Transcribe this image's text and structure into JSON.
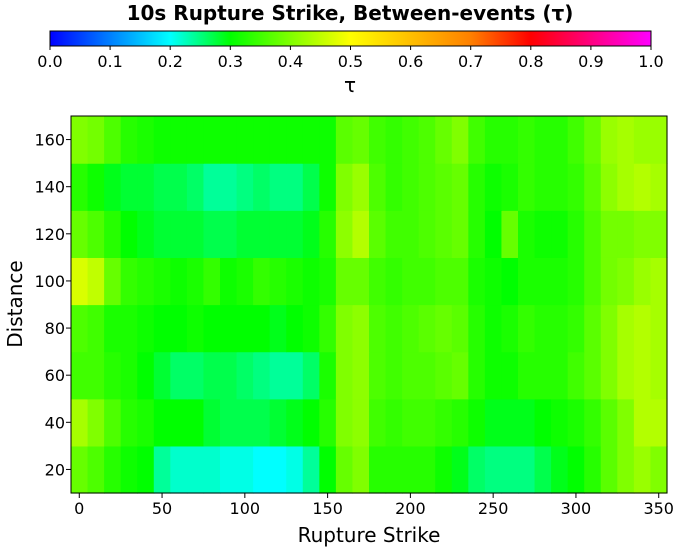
{
  "chart_data": {
    "type": "heatmap",
    "title": "10s Rupture Strike, Between-events (τ)",
    "xlabel": "Rupture Strike",
    "ylabel": "Distance",
    "colorbar": {
      "label": "τ",
      "range": [
        0.0,
        1.0
      ],
      "ticks": [
        "0.0",
        "0.1",
        "0.2",
        "0.3",
        "0.4",
        "0.5",
        "0.6",
        "0.7",
        "0.8",
        "0.9",
        "1.0"
      ],
      "colormap": "rainbow (blue → cyan → green → yellow → red → magenta)"
    },
    "x_ticks": [
      "0",
      "50",
      "100",
      "150",
      "200",
      "250",
      "300",
      "350"
    ],
    "y_ticks": [
      "20",
      "40",
      "60",
      "80",
      "100",
      "120",
      "140",
      "160"
    ],
    "xlim": [
      -5,
      355
    ],
    "ylim": [
      10,
      170
    ],
    "x_centers": [
      0,
      10,
      20,
      30,
      40,
      50,
      60,
      70,
      80,
      90,
      100,
      110,
      120,
      130,
      140,
      150,
      160,
      170,
      180,
      190,
      200,
      210,
      220,
      230,
      240,
      250,
      260,
      270,
      280,
      290,
      300,
      310,
      320,
      330,
      340,
      350
    ],
    "y_centers": [
      20,
      40,
      60,
      80,
      100,
      120,
      140,
      160
    ],
    "values": [
      [
        0.38,
        0.36,
        0.33,
        0.31,
        0.3,
        0.24,
        0.22,
        0.22,
        0.22,
        0.21,
        0.21,
        0.2,
        0.2,
        0.21,
        0.24,
        0.3,
        0.38,
        0.4,
        0.33,
        0.33,
        0.33,
        0.33,
        0.31,
        0.29,
        0.26,
        0.25,
        0.25,
        0.25,
        0.27,
        0.29,
        0.3,
        0.33,
        0.37,
        0.4,
        0.42,
        0.4
      ],
      [
        0.43,
        0.4,
        0.36,
        0.33,
        0.32,
        0.3,
        0.3,
        0.3,
        0.28,
        0.27,
        0.27,
        0.27,
        0.28,
        0.29,
        0.3,
        0.33,
        0.4,
        0.41,
        0.35,
        0.34,
        0.35,
        0.35,
        0.34,
        0.33,
        0.31,
        0.29,
        0.29,
        0.29,
        0.3,
        0.31,
        0.32,
        0.34,
        0.37,
        0.4,
        0.44,
        0.44
      ],
      [
        0.35,
        0.35,
        0.33,
        0.32,
        0.3,
        0.28,
        0.26,
        0.26,
        0.27,
        0.27,
        0.26,
        0.25,
        0.24,
        0.24,
        0.26,
        0.32,
        0.4,
        0.41,
        0.36,
        0.35,
        0.36,
        0.36,
        0.37,
        0.38,
        0.33,
        0.31,
        0.31,
        0.33,
        0.33,
        0.33,
        0.35,
        0.37,
        0.4,
        0.43,
        0.44,
        0.43
      ],
      [
        0.36,
        0.35,
        0.32,
        0.32,
        0.31,
        0.3,
        0.3,
        0.31,
        0.3,
        0.3,
        0.3,
        0.3,
        0.29,
        0.3,
        0.31,
        0.34,
        0.4,
        0.41,
        0.36,
        0.35,
        0.36,
        0.37,
        0.38,
        0.37,
        0.33,
        0.31,
        0.32,
        0.34,
        0.33,
        0.33,
        0.34,
        0.37,
        0.4,
        0.43,
        0.44,
        0.43
      ],
      [
        0.47,
        0.45,
        0.38,
        0.34,
        0.33,
        0.32,
        0.31,
        0.32,
        0.34,
        0.31,
        0.32,
        0.34,
        0.33,
        0.32,
        0.31,
        0.32,
        0.38,
        0.38,
        0.35,
        0.34,
        0.35,
        0.35,
        0.36,
        0.36,
        0.32,
        0.31,
        0.3,
        0.32,
        0.32,
        0.32,
        0.33,
        0.36,
        0.39,
        0.4,
        0.42,
        0.43
      ],
      [
        0.38,
        0.36,
        0.33,
        0.3,
        0.29,
        0.28,
        0.28,
        0.28,
        0.27,
        0.27,
        0.28,
        0.28,
        0.28,
        0.28,
        0.29,
        0.33,
        0.41,
        0.44,
        0.37,
        0.35,
        0.35,
        0.36,
        0.37,
        0.38,
        0.33,
        0.3,
        0.38,
        0.32,
        0.31,
        0.31,
        0.33,
        0.36,
        0.39,
        0.39,
        0.4,
        0.4
      ],
      [
        0.33,
        0.31,
        0.29,
        0.28,
        0.28,
        0.27,
        0.27,
        0.26,
        0.24,
        0.24,
        0.25,
        0.26,
        0.25,
        0.25,
        0.27,
        0.31,
        0.4,
        0.42,
        0.36,
        0.34,
        0.35,
        0.36,
        0.37,
        0.38,
        0.33,
        0.31,
        0.32,
        0.34,
        0.33,
        0.33,
        0.34,
        0.37,
        0.41,
        0.43,
        0.44,
        0.43
      ],
      [
        0.4,
        0.39,
        0.36,
        0.33,
        0.32,
        0.31,
        0.31,
        0.31,
        0.31,
        0.31,
        0.31,
        0.31,
        0.31,
        0.31,
        0.31,
        0.31,
        0.37,
        0.38,
        0.35,
        0.34,
        0.35,
        0.36,
        0.38,
        0.4,
        0.35,
        0.33,
        0.33,
        0.34,
        0.33,
        0.33,
        0.35,
        0.38,
        0.42,
        0.43,
        0.42,
        0.42
      ]
    ]
  }
}
